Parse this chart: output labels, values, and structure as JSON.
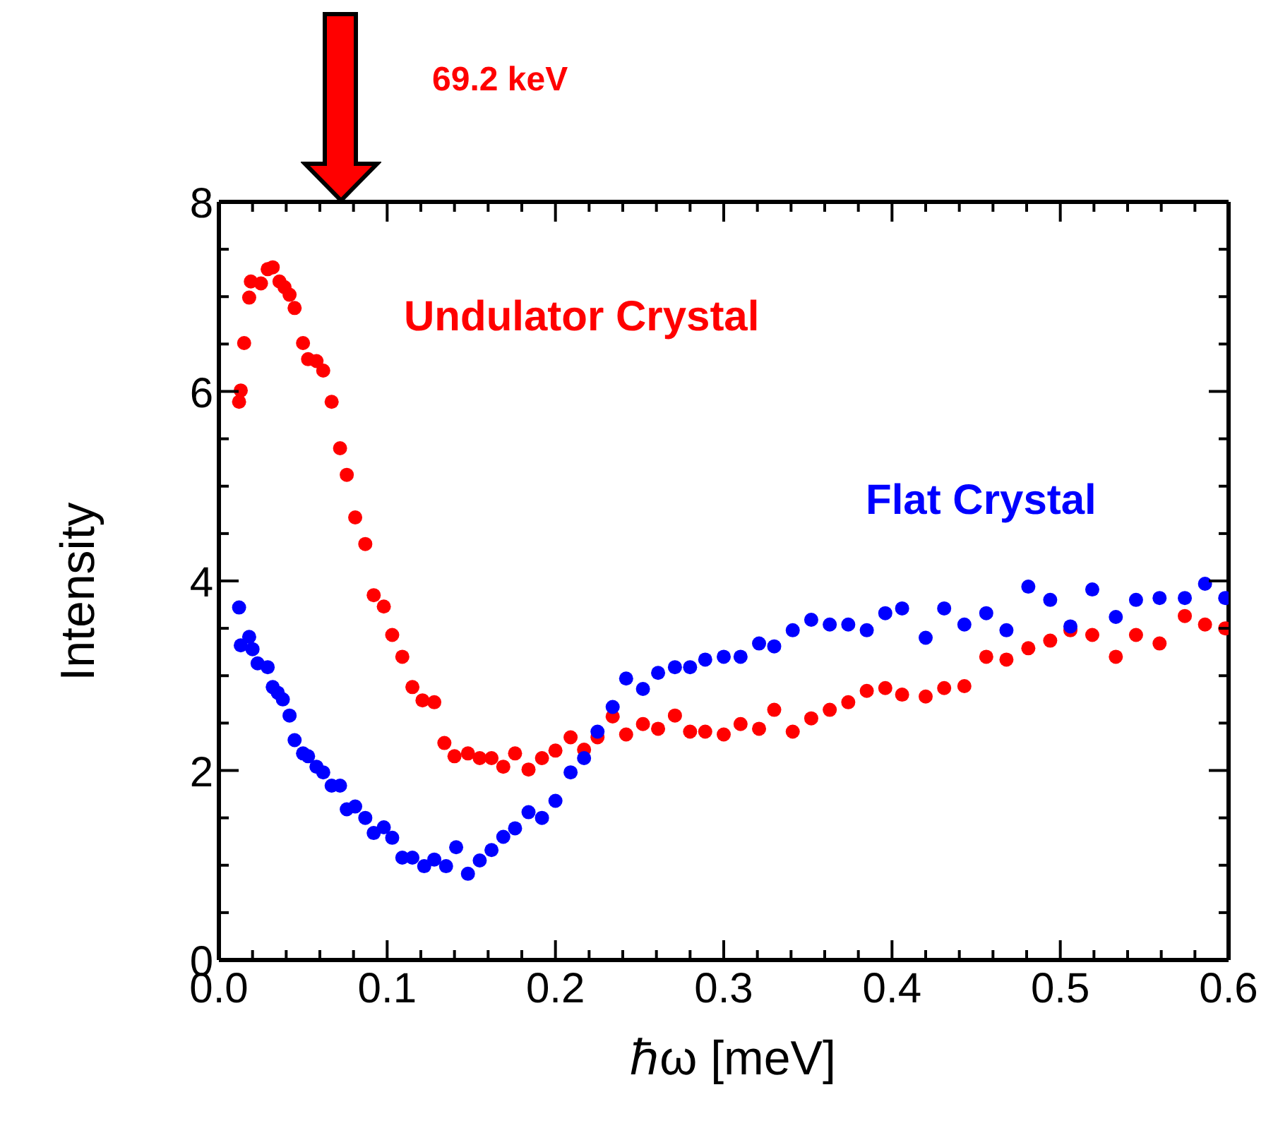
{
  "chart_data": {
    "type": "scatter",
    "xlabel": "ℏω [meV]",
    "ylabel": "Intensity",
    "annotations": [
      "69.2 keV"
    ],
    "marker": "circle",
    "xlim": [
      0,
      0.6
    ],
    "ylim": [
      0,
      8
    ],
    "xticks": [
      {
        "value": 0,
        "label": "0.0"
      },
      {
        "value": 0.02,
        "label": null
      },
      {
        "value": 0.04,
        "label": null
      },
      {
        "value": 0.06,
        "label": null
      },
      {
        "value": 0.08,
        "label": null
      },
      {
        "value": 0.1,
        "label": "0.1"
      },
      {
        "value": 0.12,
        "label": null
      },
      {
        "value": 0.14,
        "label": null
      },
      {
        "value": 0.16,
        "label": null
      },
      {
        "value": 0.18,
        "label": null
      },
      {
        "value": 0.2,
        "label": "0.2"
      },
      {
        "value": 0.22,
        "label": null
      },
      {
        "value": 0.24,
        "label": null
      },
      {
        "value": 0.26,
        "label": null
      },
      {
        "value": 0.28,
        "label": null
      },
      {
        "value": 0.3,
        "label": "0.3"
      },
      {
        "value": 0.32,
        "label": null
      },
      {
        "value": 0.34,
        "label": null
      },
      {
        "value": 0.36,
        "label": null
      },
      {
        "value": 0.38,
        "label": null
      },
      {
        "value": 0.4,
        "label": "0.4"
      },
      {
        "value": 0.42,
        "label": null
      },
      {
        "value": 0.44,
        "label": null
      },
      {
        "value": 0.46,
        "label": null
      },
      {
        "value": 0.48,
        "label": null
      },
      {
        "value": 0.5,
        "label": "0.5"
      },
      {
        "value": 0.52,
        "label": null
      },
      {
        "value": 0.54,
        "label": null
      },
      {
        "value": 0.56,
        "label": null
      },
      {
        "value": 0.58,
        "label": null
      },
      {
        "value": 0.6,
        "label": "0.6"
      }
    ],
    "yticks": [
      0,
      {
        "value": 0.5,
        "label": null
      },
      {
        "value": 1,
        "label": null
      },
      {
        "value": 1.5,
        "label": null
      },
      2,
      {
        "value": 2.5,
        "label": null
      },
      {
        "value": 3,
        "label": null
      },
      {
        "value": 3.5,
        "label": null
      },
      4,
      {
        "value": 4.5,
        "label": null
      },
      {
        "value": 5,
        "label": null
      },
      {
        "value": 5.5,
        "label": null
      },
      6,
      {
        "value": 6.5,
        "label": null
      },
      {
        "value": 7,
        "label": null
      },
      {
        "value": 7.5,
        "label": null
      },
      8
    ],
    "series": [
      {
        "name": "Undulator Crystal",
        "color": "#ff0000",
        "x": [
          0.012,
          0.013,
          0.015,
          0.018,
          0.019,
          0.025,
          0.029,
          0.032,
          0.036,
          0.039,
          0.042,
          0.045,
          0.05,
          0.053,
          0.058,
          0.062,
          0.067,
          0.072,
          0.076,
          0.081,
          0.087,
          0.092,
          0.098,
          0.103,
          0.109,
          0.115,
          0.121,
          0.128,
          0.134,
          0.14,
          0.148,
          0.155,
          0.162,
          0.169,
          0.176,
          0.184,
          0.192,
          0.2,
          0.209,
          0.217,
          0.225,
          0.234,
          0.242,
          0.252,
          0.261,
          0.271,
          0.28,
          0.289,
          0.3,
          0.31,
          0.321,
          0.33,
          0.341,
          0.352,
          0.363,
          0.374,
          0.385,
          0.396,
          0.406,
          0.42,
          0.431,
          0.443,
          0.456,
          0.468,
          0.481,
          0.494,
          0.506,
          0.519,
          0.533,
          0.545,
          0.559,
          0.574,
          0.586,
          0.598
        ],
        "values": [
          5.89,
          6.01,
          6.51,
          6.99,
          7.16,
          7.14,
          7.29,
          7.31,
          7.16,
          7.1,
          7.02,
          6.88,
          6.51,
          6.34,
          6.32,
          6.22,
          5.89,
          5.4,
          5.12,
          4.67,
          4.39,
          3.85,
          3.73,
          3.43,
          3.2,
          2.88,
          2.74,
          2.72,
          2.29,
          2.15,
          2.18,
          2.13,
          2.13,
          2.04,
          2.18,
          2.01,
          2.13,
          2.21,
          2.35,
          2.22,
          2.35,
          2.57,
          2.38,
          2.49,
          2.44,
          2.58,
          2.41,
          2.41,
          2.38,
          2.49,
          2.44,
          2.64,
          2.41,
          2.55,
          2.64,
          2.72,
          2.84,
          2.87,
          2.8,
          2.78,
          2.87,
          2.89,
          3.2,
          3.17,
          3.29,
          3.37,
          3.48,
          3.43,
          3.2,
          3.43,
          3.34,
          3.63,
          3.54,
          3.5
        ]
      },
      {
        "name": "Flat Crystal",
        "color": "#0000ff",
        "x": [
          0.012,
          0.013,
          0.018,
          0.02,
          0.023,
          0.029,
          0.032,
          0.035,
          0.038,
          0.042,
          0.045,
          0.05,
          0.053,
          0.058,
          0.062,
          0.067,
          0.072,
          0.076,
          0.081,
          0.087,
          0.092,
          0.098,
          0.103,
          0.109,
          0.115,
          0.122,
          0.128,
          0.135,
          0.141,
          0.148,
          0.155,
          0.162,
          0.169,
          0.176,
          0.184,
          0.192,
          0.2,
          0.209,
          0.217,
          0.225,
          0.234,
          0.242,
          0.252,
          0.261,
          0.271,
          0.28,
          0.289,
          0.3,
          0.31,
          0.321,
          0.33,
          0.341,
          0.352,
          0.363,
          0.374,
          0.385,
          0.396,
          0.406,
          0.42,
          0.431,
          0.443,
          0.456,
          0.468,
          0.481,
          0.494,
          0.506,
          0.519,
          0.533,
          0.545,
          0.559,
          0.574,
          0.586,
          0.598
        ],
        "values": [
          3.72,
          3.32,
          3.41,
          3.28,
          3.13,
          3.09,
          2.88,
          2.82,
          2.75,
          2.58,
          2.32,
          2.18,
          2.15,
          2.04,
          1.98,
          1.84,
          1.84,
          1.59,
          1.62,
          1.5,
          1.34,
          1.4,
          1.29,
          1.08,
          1.08,
          0.99,
          1.06,
          0.99,
          1.19,
          0.91,
          1.05,
          1.16,
          1.3,
          1.39,
          1.56,
          1.5,
          1.68,
          1.98,
          2.13,
          2.41,
          2.67,
          2.97,
          2.86,
          3.03,
          3.09,
          3.09,
          3.17,
          3.2,
          3.2,
          3.34,
          3.31,
          3.48,
          3.59,
          3.54,
          3.54,
          3.48,
          3.66,
          3.71,
          3.4,
          3.71,
          3.54,
          3.66,
          3.48,
          3.94,
          3.8,
          3.52,
          3.91,
          3.62,
          3.8,
          3.82,
          3.82,
          3.97,
          3.82
        ]
      }
    ]
  }
}
